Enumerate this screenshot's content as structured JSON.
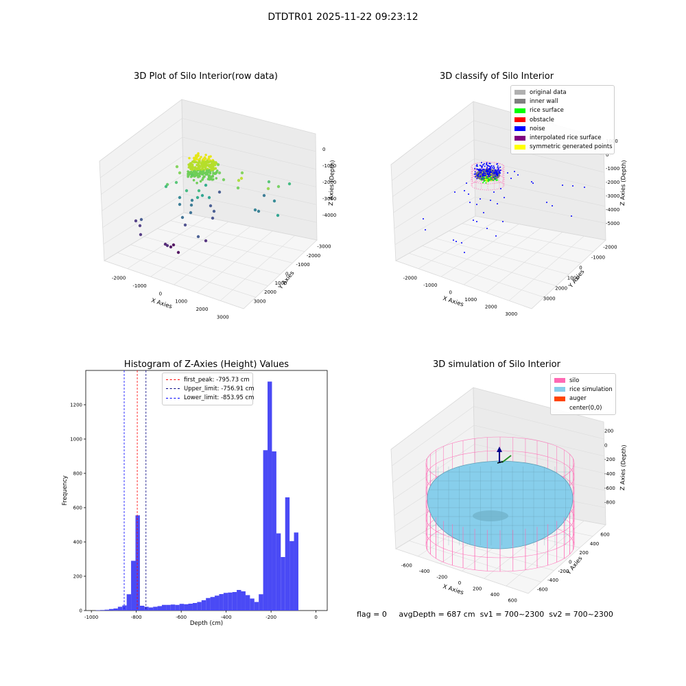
{
  "figure_title": "DTDTR01 2025-11-22 09:23:12",
  "panels": {
    "raw": {
      "title": "3D Plot of Silo Interior(row data)",
      "x_axis_label": "X Axies",
      "y_axis_label": "Y Axies",
      "z_axis_label": "Z Axies (Depth)",
      "x_ticks": [
        "-2000",
        "-1000",
        "0",
        "1000",
        "2000",
        "3000"
      ],
      "y_ticks": [
        "-3000",
        "-2000",
        "-1000",
        "0",
        "1000",
        "2000",
        "3000"
      ],
      "z_ticks": [
        "0",
        "-1000",
        "-2000",
        "-3000",
        "-4000"
      ]
    },
    "classify": {
      "title": "3D classify of Silo Interior",
      "x_axis_label": "X Axies",
      "y_axis_label": "Y Axies",
      "z_axis_label": "Z Axies (Depth)",
      "x_ticks": [
        "-2000",
        "-1000",
        "0",
        "1000",
        "2000",
        "3000"
      ],
      "y_ticks": [
        "-2000",
        "-1000",
        "0",
        "1000",
        "2000",
        "3000"
      ],
      "z_ticks": [
        "1000",
        "0",
        "-1000",
        "-2000",
        "-3000",
        "-4000",
        "-5000"
      ],
      "legend": [
        {
          "label": "original data",
          "color": "#b0b0b0"
        },
        {
          "label": "inner wall",
          "color": "#808080"
        },
        {
          "label": "rice surface",
          "color": "#00ff00"
        },
        {
          "label": "obstacle",
          "color": "#ff0000"
        },
        {
          "label": "noise",
          "color": "#0000ff"
        },
        {
          "label": "interpolated rice surface",
          "color": "#800080"
        },
        {
          "label": "symmetric generated points",
          "color": "#ffff00"
        }
      ]
    },
    "simulation": {
      "title": "3D simulation of Silo Interior",
      "x_axis_label": "X Axies",
      "y_axis_label": "Y Axies",
      "z_axis_label": "Z Axies (Depth)",
      "x_ticks": [
        "-600",
        "-400",
        "-200",
        "0",
        "200",
        "400",
        "600"
      ],
      "y_ticks": [
        "-600",
        "-400",
        "-200",
        "0",
        "200",
        "400",
        "600"
      ],
      "z_ticks": [
        "200",
        "0",
        "-200",
        "-400",
        "-600",
        "-800"
      ],
      "legend": [
        {
          "label": "silo",
          "color": "#ff69b4"
        },
        {
          "label": "rice simulation",
          "color": "#87ceeb"
        },
        {
          "label": "auger",
          "color": "#ff4500"
        },
        {
          "label": "center(0,0)",
          "color": ""
        }
      ]
    }
  },
  "chart_data": [
    {
      "type": "scatter",
      "title": "3D Plot of Silo Interior(row data)",
      "xlabel": "X Axies",
      "ylabel": "Y Axies",
      "zlabel": "Z Axies (Depth)",
      "xlim": [
        -2500,
        3500
      ],
      "ylim": [
        -3000,
        3500
      ],
      "zlim": [
        -4500,
        0
      ],
      "grid": true,
      "points": [
        {
          "x": 0,
          "y": 0,
          "z": -800
        },
        {
          "x": 200,
          "y": 0,
          "z": -850
        },
        {
          "x": -200,
          "y": 0,
          "z": -900
        },
        {
          "x": 0,
          "y": 400,
          "z": -1200
        },
        {
          "x": 300,
          "y": -300,
          "z": -1500
        },
        {
          "x": -400,
          "y": 200,
          "z": -1900
        },
        {
          "x": 100,
          "y": -500,
          "z": -2200
        },
        {
          "x": -800,
          "y": 800,
          "z": -2800
        },
        {
          "x": 2000,
          "y": 1500,
          "z": -2000
        },
        {
          "x": 2500,
          "y": 2000,
          "z": -2600
        },
        {
          "x": -1800,
          "y": -500,
          "z": -3500
        },
        {
          "x": -1200,
          "y": -1500,
          "z": -4200
        }
      ]
    },
    {
      "type": "scatter",
      "title": "3D classify of Silo Interior",
      "xlabel": "X Axies",
      "ylabel": "Y Axies",
      "zlabel": "Z Axies (Depth)",
      "xlim": [
        -2500,
        3500
      ],
      "ylim": [
        -2500,
        3500
      ],
      "zlim": [
        -5000,
        1000
      ],
      "grid": true,
      "legend_position": "top-right",
      "series": [
        {
          "name": "original data",
          "color": "#b0b0b0"
        },
        {
          "name": "inner wall",
          "color": "#808080"
        },
        {
          "name": "rice surface",
          "color": "#00ff00"
        },
        {
          "name": "obstacle",
          "color": "#ff0000"
        },
        {
          "name": "noise",
          "color": "#0000ff"
        },
        {
          "name": "interpolated rice surface",
          "color": "#800080"
        },
        {
          "name": "symmetric generated points",
          "color": "#ffff00"
        }
      ]
    },
    {
      "type": "bar",
      "title": "Histogram of Z-Axies (Height) Values",
      "xlabel": "Depth (cm)",
      "ylabel": "Frequency",
      "xlim": [
        -1025,
        50
      ],
      "ylim": [
        0,
        1400
      ],
      "x_ticks": [
        -1000,
        -800,
        -600,
        -400,
        -200,
        0
      ],
      "y_ticks": [
        0,
        200,
        400,
        600,
        800,
        1000,
        1200
      ],
      "bar_color": "#4a4af5",
      "bin_width": 19.6,
      "bin_start": -980,
      "values": [
        2,
        3,
        5,
        9,
        12,
        22,
        30,
        95,
        290,
        555,
        28,
        22,
        18,
        22,
        26,
        33,
        33,
        35,
        33,
        39,
        37,
        40,
        44,
        50,
        60,
        73,
        79,
        87,
        96,
        103,
        105,
        108,
        120,
        112,
        90,
        70,
        50,
        95,
        935,
        1335,
        928,
        450,
        312,
        660,
        405,
        455
      ],
      "lines": [
        {
          "label": "first_peak: -795.73 cm",
          "x": -795.73,
          "color": "#ff0000"
        },
        {
          "label": "Upper_limit: -756.91 cm",
          "x": -756.91,
          "color": "#000080"
        },
        {
          "label": "Lower_limit: -853.95 cm",
          "x": -853.95,
          "color": "#0000ff"
        }
      ],
      "legend_position": "top-center"
    },
    {
      "type": "surface",
      "title": "3D simulation of Silo Interior",
      "xlabel": "X Axies",
      "ylabel": "Y Axies",
      "zlabel": "Z Axies (Depth)",
      "xlim": [
        -700,
        700
      ],
      "ylim": [
        -700,
        700
      ],
      "zlim": [
        -900,
        300
      ],
      "grid": true,
      "legend_position": "top-right",
      "series": [
        {
          "name": "silo",
          "color": "#ff69b4"
        },
        {
          "name": "rice simulation",
          "color": "#87ceeb"
        },
        {
          "name": "auger",
          "color": "#ff4500"
        },
        {
          "name": "center(0,0)"
        }
      ]
    }
  ],
  "histogram": {
    "title": "Histogram of Z-Axies (Height) Values",
    "xlabel": "Depth (cm)",
    "ylabel": "Frequency"
  },
  "status": {
    "flag": "flag = 0",
    "avg_depth": "avgDepth = 687 cm",
    "sv1": "sv1 = 700~2300",
    "sv2": "sv2 = 700~2300"
  }
}
